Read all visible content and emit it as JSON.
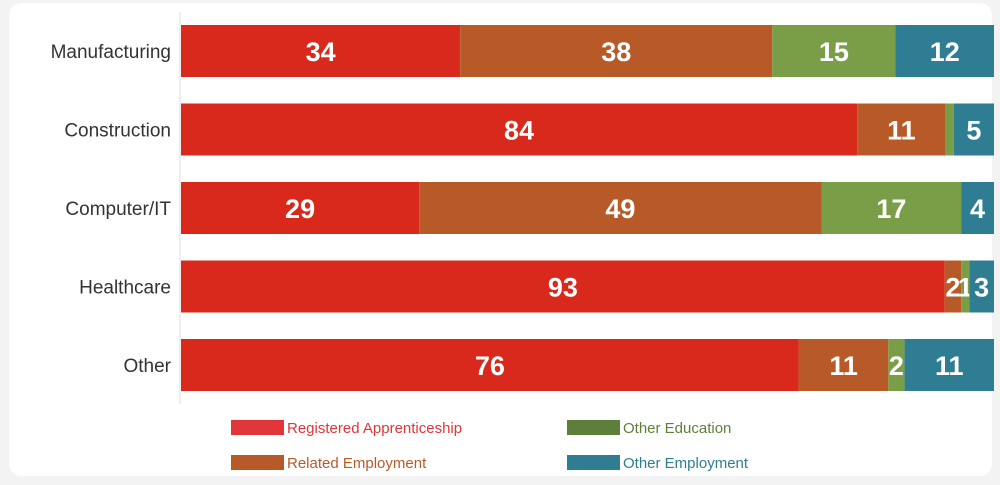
{
  "chart_data": {
    "type": "bar",
    "orientation": "horizontal",
    "stacked": true,
    "categories": [
      "Manufacturing",
      "Construction",
      "Computer/IT",
      "Healthcare",
      "Other"
    ],
    "series": [
      {
        "name": "Registered Apprenticeship",
        "color": "#d9291c",
        "values": [
          34,
          84,
          29,
          93,
          76
        ]
      },
      {
        "name": "Related Employment",
        "color": "#b85a28",
        "values": [
          38,
          11,
          49,
          2,
          11
        ]
      },
      {
        "name": "Other Education",
        "color": "#7a9e47",
        "values": [
          15,
          1,
          17,
          1,
          2
        ]
      },
      {
        "name": "Other Employment",
        "color": "#2f7d92",
        "values": [
          12,
          5,
          4,
          3,
          11
        ]
      }
    ],
    "value_labels": [
      [
        "34",
        "38",
        "15",
        "12"
      ],
      [
        "84",
        "11",
        "",
        "5"
      ],
      [
        "29",
        "49",
        "17",
        "4"
      ],
      [
        "93",
        "2",
        "1",
        "3"
      ],
      [
        "76",
        "11",
        "2",
        "11"
      ]
    ],
    "legend": {
      "position": "bottom",
      "items": [
        {
          "label": "Registered Apprenticeship",
          "color": "#e0363a",
          "text_color": "#e0363a"
        },
        {
          "label": "Other Education",
          "color": "#5e7f3a",
          "text_color": "#5e7f3a"
        },
        {
          "label": "Related Employment",
          "color": "#b85a28",
          "text_color": "#b85a28"
        },
        {
          "label": "Other Employment",
          "color": "#2f7d92",
          "text_color": "#2f7d92"
        }
      ]
    },
    "xlim": [
      0,
      100
    ],
    "grid": false,
    "title": "",
    "xlabel": "",
    "ylabel": ""
  }
}
